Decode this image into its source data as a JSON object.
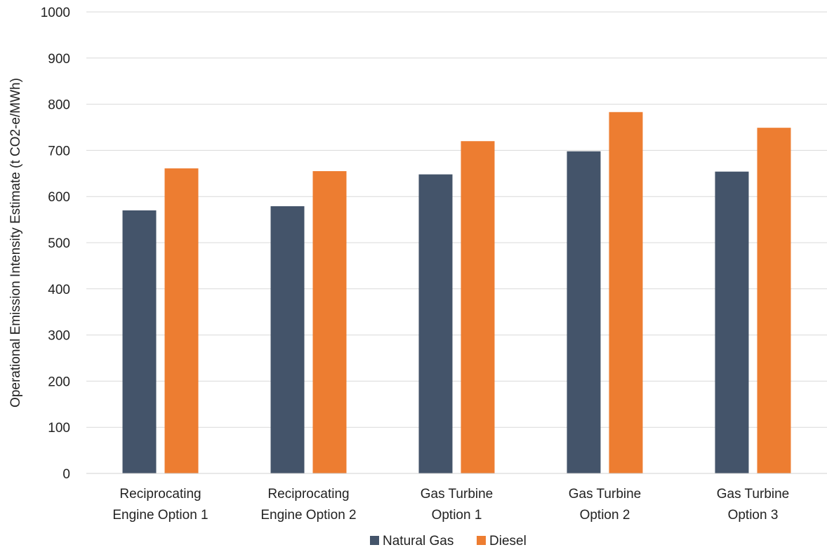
{
  "chart_data": {
    "type": "bar",
    "title": "",
    "xlabel": "",
    "ylabel": "Operational Emission Intensity Estimate (t CO2-e/MWh)",
    "ylim": [
      0,
      1000
    ],
    "yticks": [
      0,
      100,
      200,
      300,
      400,
      500,
      600,
      700,
      800,
      900,
      1000
    ],
    "grid": true,
    "legend_position": "bottom",
    "categories": [
      [
        "Reciprocating",
        "Engine Option 1"
      ],
      [
        "Reciprocating",
        "Engine Option 2"
      ],
      [
        "Gas Turbine",
        "Option 1"
      ],
      [
        "Gas Turbine",
        "Option 2"
      ],
      [
        "Gas Turbine",
        "Option 3"
      ]
    ],
    "series": [
      {
        "name": "Natural Gas",
        "color": "#44546a",
        "values": [
          570,
          579,
          648,
          698,
          654
        ]
      },
      {
        "name": "Diesel",
        "color": "#ed7d31",
        "values": [
          661,
          655,
          720,
          783,
          749
        ]
      }
    ]
  }
}
